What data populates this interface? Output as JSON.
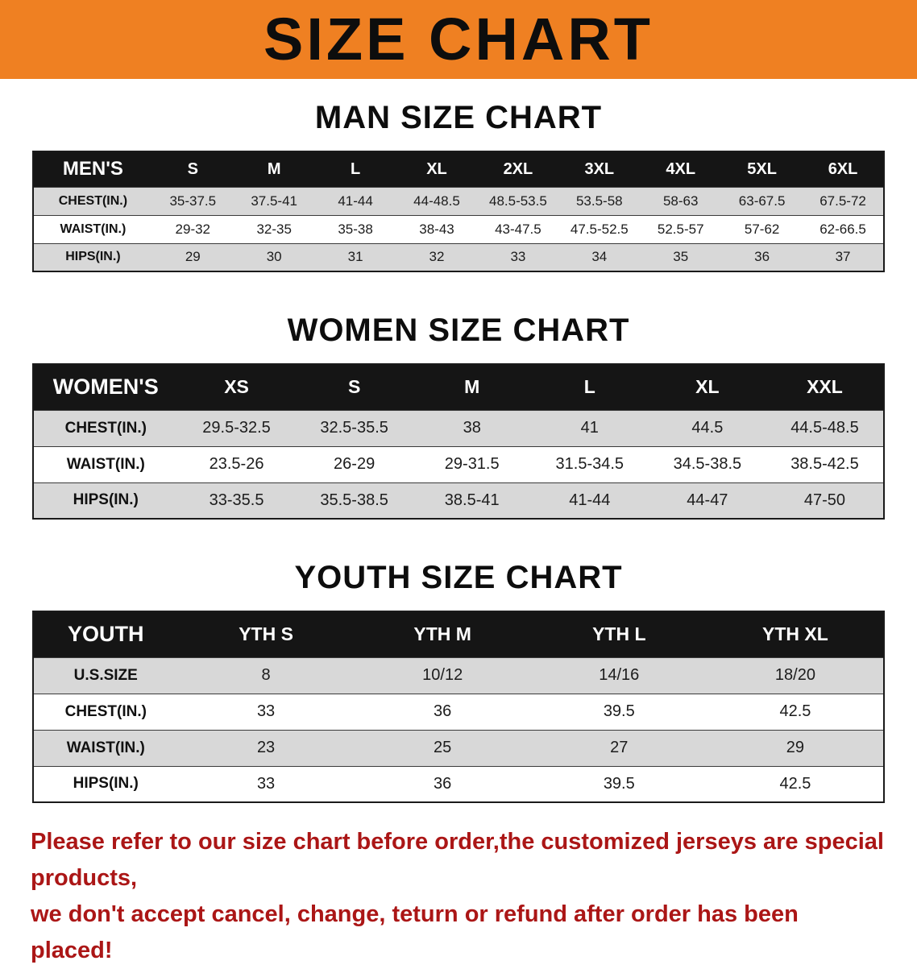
{
  "banner": {
    "title": "SIZE CHART"
  },
  "colors": {
    "banner_orange": "#ef8022",
    "header_black": "#151515",
    "row_gray": "#d8d8d8",
    "disclaimer_red": "#ab1616"
  },
  "sections": [
    {
      "heading": "MAN SIZE CHART",
      "table": {
        "header": [
          "MEN'S",
          "S",
          "M",
          "L",
          "XL",
          "2XL",
          "3XL",
          "4XL",
          "5XL",
          "6XL"
        ],
        "rows": [
          [
            "CHEST(IN.)",
            "35-37.5",
            "37.5-41",
            "41-44",
            "44-48.5",
            "48.5-53.5",
            "53.5-58",
            "58-63",
            "63-67.5",
            "67.5-72"
          ],
          [
            "WAIST(IN.)",
            "29-32",
            "32-35",
            "35-38",
            "38-43",
            "43-47.5",
            "47.5-52.5",
            "52.5-57",
            "57-62",
            "62-66.5"
          ],
          [
            "HIPS(IN.)",
            "29",
            "30",
            "31",
            "32",
            "33",
            "34",
            "35",
            "36",
            "37"
          ]
        ]
      }
    },
    {
      "heading": "WOMEN SIZE CHART",
      "table": {
        "header": [
          "WOMEN'S",
          "XS",
          "S",
          "M",
          "L",
          "XL",
          "XXL"
        ],
        "rows": [
          [
            "CHEST(IN.)",
            "29.5-32.5",
            "32.5-35.5",
            "38",
            "41",
            "44.5",
            "44.5-48.5"
          ],
          [
            "WAIST(IN.)",
            "23.5-26",
            "26-29",
            "29-31.5",
            "31.5-34.5",
            "34.5-38.5",
            "38.5-42.5"
          ],
          [
            "HIPS(IN.)",
            "33-35.5",
            "35.5-38.5",
            "38.5-41",
            "41-44",
            "44-47",
            "47-50"
          ]
        ]
      }
    },
    {
      "heading": "YOUTH SIZE CHART",
      "table": {
        "header": [
          "YOUTH",
          "YTH S",
          "YTH M",
          "YTH L",
          "YTH XL"
        ],
        "rows": [
          [
            "U.S.SIZE",
            "8",
            "10/12",
            "14/16",
            "18/20"
          ],
          [
            "CHEST(IN.)",
            "33",
            "36",
            "39.5",
            "42.5"
          ],
          [
            "WAIST(IN.)",
            "23",
            "25",
            "27",
            "29"
          ],
          [
            "HIPS(IN.)",
            "33",
            "36",
            "39.5",
            "42.5"
          ]
        ]
      }
    }
  ],
  "disclaimer": {
    "line1": "Please refer to our size chart before order,the customized jerseys are special products,",
    "line2": "we don't accept cancel, change, teturn or refund after order has been placed!"
  }
}
